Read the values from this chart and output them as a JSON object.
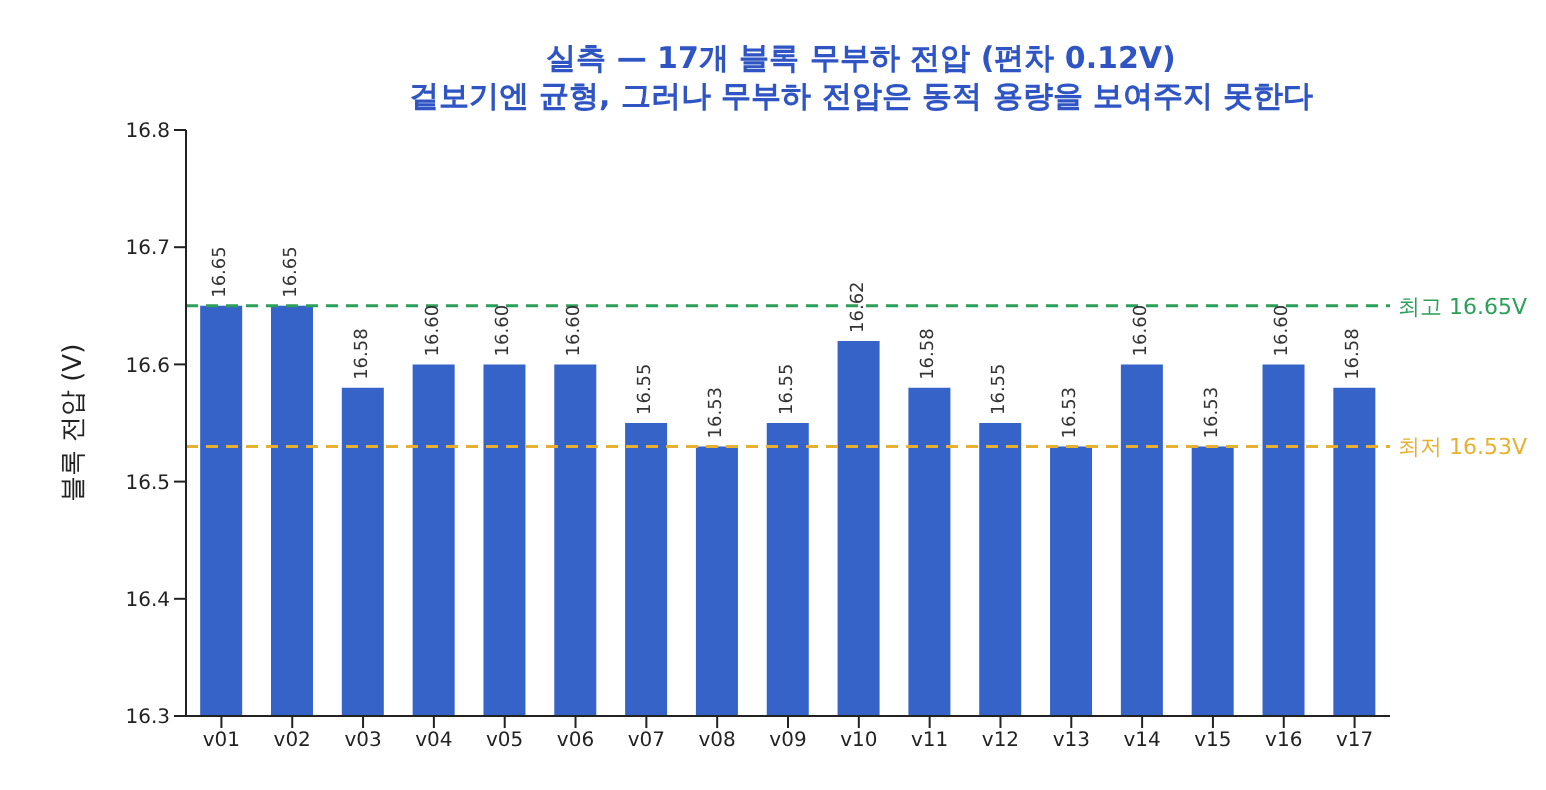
{
  "chart_data": {
    "type": "bar",
    "title": "실측 — 17개 블록 무부하 전압 (편차 0.12V)",
    "subtitle": "겉보기엔 균형, 그러나 무부하 전압은 동적 용량을 보여주지 못한다",
    "ylabel": "블록 전압 (V)",
    "categories": [
      "v01",
      "v02",
      "v03",
      "v04",
      "v05",
      "v06",
      "v07",
      "v08",
      "v09",
      "v10",
      "v11",
      "v12",
      "v13",
      "v14",
      "v15",
      "v16",
      "v17"
    ],
    "values": [
      16.65,
      16.65,
      16.58,
      16.6,
      16.6,
      16.6,
      16.55,
      16.53,
      16.55,
      16.62,
      16.58,
      16.55,
      16.53,
      16.6,
      16.53,
      16.6,
      16.58
    ],
    "value_labels": [
      "16.65",
      "16.65",
      "16.58",
      "16.60",
      "16.60",
      "16.60",
      "16.55",
      "16.53",
      "16.55",
      "16.62",
      "16.58",
      "16.55",
      "16.53",
      "16.60",
      "16.53",
      "16.60",
      "16.58"
    ],
    "color": "#3563c8",
    "ylim": [
      16.3,
      16.8
    ],
    "yticks": [
      16.3,
      16.4,
      16.5,
      16.6,
      16.7,
      16.8
    ],
    "ref_lines": [
      {
        "axis": "y",
        "value": 16.65,
        "label": "최고 16.65V",
        "color": "#2ca05a",
        "line_style": "dashed"
      },
      {
        "axis": "y",
        "value": 16.53,
        "label": "최저 16.53V",
        "color": "#e8b030",
        "line_style": "dashed"
      }
    ],
    "grid": false,
    "legend": false
  }
}
